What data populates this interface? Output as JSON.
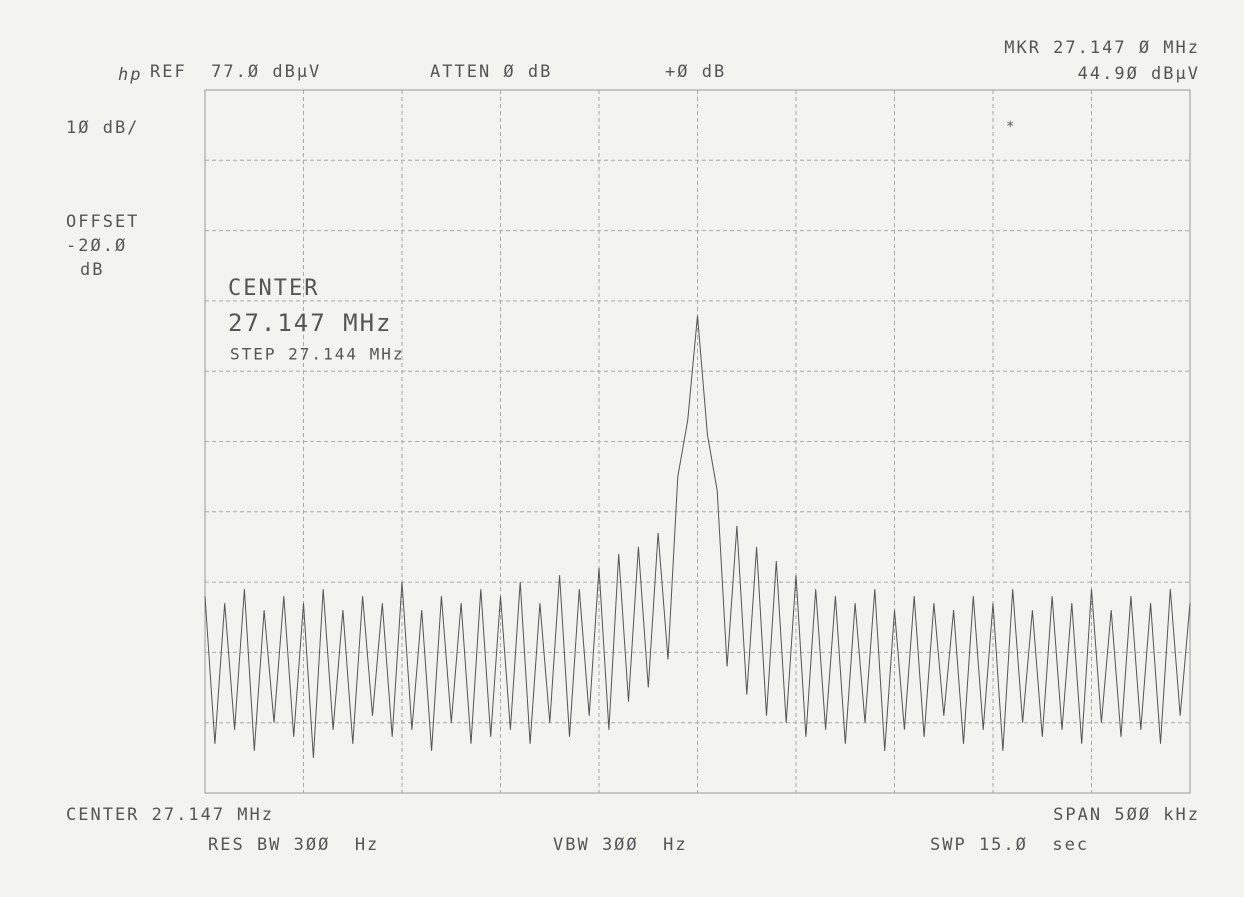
{
  "chart_data": {
    "type": "line",
    "logo": "hp",
    "ref_level": "REF  77.Ø dBµV",
    "attenuation": "ATTEN Ø dB",
    "ref_offset": "+Ø dB",
    "marker_frequency": "MKR 27.147 Ø MHz",
    "marker_level": "44.9Ø dBµV",
    "scale": "1Ø dB/",
    "offset_label": "OFFSET",
    "offset_value": "-2Ø.Ø",
    "offset_unit": "dB",
    "annotation_center": "CENTER",
    "annotation_frequency": "27.147 MHz",
    "annotation_step": "STEP 27.144 MHz",
    "center": "CENTER 27.147 MHz",
    "span": "SPAN 5ØØ kHz",
    "res_bw": "RES BW 3ØØ  Hz",
    "vbw": "VBW 3ØØ  Hz",
    "sweep": "SWP 15.Ø  sec",
    "xlim": [
      26.897,
      27.397
    ],
    "ylim": [
      -23,
      77
    ],
    "grid": true,
    "color": "#555555",
    "x": [
      26.897,
      26.902,
      26.907,
      26.912,
      26.917,
      26.922,
      26.927,
      26.932,
      26.937,
      26.942,
      26.947,
      26.952,
      26.957,
      26.962,
      26.967,
      26.972,
      26.977,
      26.982,
      26.987,
      26.992,
      26.997,
      27.002,
      27.007,
      27.012,
      27.017,
      27.022,
      27.027,
      27.032,
      27.037,
      27.042,
      27.047,
      27.052,
      27.057,
      27.062,
      27.067,
      27.072,
      27.077,
      27.082,
      27.087,
      27.092,
      27.097,
      27.102,
      27.107,
      27.112,
      27.117,
      27.122,
      27.127,
      27.132,
      27.137,
      27.142,
      27.147,
      27.152,
      27.157,
      27.162,
      27.167,
      27.172,
      27.177,
      27.182,
      27.187,
      27.192,
      27.197,
      27.202,
      27.207,
      27.212,
      27.217,
      27.222,
      27.227,
      27.232,
      27.237,
      27.242,
      27.247,
      27.252,
      27.257,
      27.262,
      27.267,
      27.272,
      27.277,
      27.282,
      27.287,
      27.292,
      27.297,
      27.302,
      27.307,
      27.312,
      27.317,
      27.322,
      27.327,
      27.332,
      27.337,
      27.342,
      27.347,
      27.352,
      27.357,
      27.362,
      27.367,
      27.372,
      27.377,
      27.382,
      27.387,
      27.392,
      27.397
    ],
    "values": [
      5,
      -16,
      4,
      -14,
      6,
      -17,
      3,
      -13,
      5,
      -15,
      4,
      -18,
      6,
      -14,
      3,
      -16,
      5,
      -12,
      4,
      -15,
      7,
      -14,
      3,
      -17,
      5,
      -13,
      4,
      -16,
      6,
      -15,
      5,
      -14,
      7,
      -16,
      4,
      -13,
      8,
      -15,
      6,
      -12,
      9,
      -14,
      11,
      -10,
      12,
      -8,
      14,
      -4,
      22,
      30,
      44.9,
      28,
      20,
      -5,
      15,
      -9,
      12,
      -12,
      10,
      -13,
      8,
      -15,
      6,
      -14,
      5,
      -16,
      4,
      -13,
      6,
      -17,
      3,
      -14,
      5,
      -15,
      4,
      -12,
      3,
      -16,
      5,
      -14,
      4,
      -17,
      6,
      -13,
      3,
      -15,
      5,
      -14,
      4,
      -16,
      6,
      -13,
      3,
      -15,
      5,
      -14,
      4,
      -16,
      6,
      -12,
      4
    ]
  }
}
